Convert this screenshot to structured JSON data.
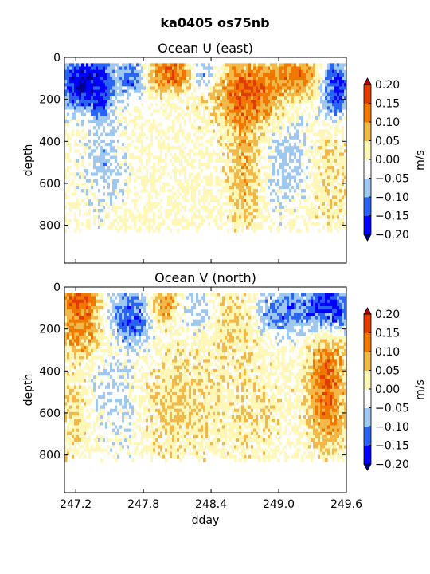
{
  "figure": {
    "suptitle": "ka0405 os75nb"
  },
  "chart_data": [
    {
      "type": "heatmap",
      "title": "Ocean U (east)",
      "xlabel": "",
      "ylabel": "depth",
      "xlim": [
        247.1,
        249.6
      ],
      "ylim": [
        980,
        0
      ],
      "yticks": [
        "0",
        "200",
        "400",
        "600",
        "800"
      ],
      "xticks": [],
      "colorbar": {
        "label": "m/s",
        "ticks": [
          "0.20",
          "0.15",
          "0.10",
          "0.05",
          "0.00",
          "−0.05",
          "−0.10",
          "−0.15",
          "−0.20"
        ],
        "colors": [
          "#00008F",
          "#0000FF",
          "#2A64F5",
          "#9EC8F0",
          "#FFFFFF",
          "#FFF7B8",
          "#F2B84A",
          "#F07800",
          "#E03C00",
          "#B40000"
        ],
        "extend": "both"
      },
      "regions": [
        {
          "x": [
            247.1,
            247.35
          ],
          "depth": [
            30,
            220
          ],
          "value": -0.2
        },
        {
          "x": [
            247.35,
            247.5
          ],
          "depth": [
            30,
            260
          ],
          "value": -0.16
        },
        {
          "x": [
            247.6,
            247.8
          ],
          "depth": [
            30,
            150
          ],
          "value": -0.15
        },
        {
          "x": [
            247.8,
            248.0
          ],
          "depth": [
            30,
            120
          ],
          "value": 0.1
        },
        {
          "x": [
            248.0,
            248.2
          ],
          "depth": [
            30,
            120
          ],
          "value": 0.17
        },
        {
          "x": [
            248.2,
            248.45
          ],
          "depth": [
            30,
            120
          ],
          "value": -0.1
        },
        {
          "x": [
            248.45,
            249.0
          ],
          "depth": [
            30,
            300
          ],
          "value": 0.15
        },
        {
          "x": [
            248.6,
            248.8
          ],
          "depth": [
            300,
            800
          ],
          "value": 0.08
        },
        {
          "x": [
            249.0,
            249.4
          ],
          "depth": [
            30,
            150
          ],
          "value": 0.12
        },
        {
          "x": [
            249.4,
            249.6
          ],
          "depth": [
            30,
            250
          ],
          "value": -0.2
        },
        {
          "x": [
            247.3,
            247.6
          ],
          "depth": [
            300,
            700
          ],
          "value": -0.06
        },
        {
          "x": [
            248.9,
            249.3
          ],
          "depth": [
            300,
            700
          ],
          "value": -0.06
        },
        {
          "x": [
            249.3,
            249.6
          ],
          "depth": [
            300,
            800
          ],
          "value": 0.04
        }
      ]
    },
    {
      "type": "heatmap",
      "title": "Ocean V (north)",
      "xlabel": "dday",
      "ylabel": "depth",
      "xlim": [
        247.1,
        249.6
      ],
      "ylim": [
        980,
        0
      ],
      "yticks": [
        "0",
        "200",
        "400",
        "600",
        "800"
      ],
      "xticks": [
        "247.2",
        "247.8",
        "248.4",
        "249.0",
        "249.6"
      ],
      "colorbar": {
        "label": "m/s",
        "ticks": [
          "0.20",
          "0.15",
          "0.10",
          "0.05",
          "0.00",
          "−0.05",
          "−0.10",
          "−0.15",
          "−0.20"
        ],
        "colors": [
          "#00008F",
          "#0000FF",
          "#2A64F5",
          "#9EC8F0",
          "#FFFFFF",
          "#FFF7B8",
          "#F2B84A",
          "#F07800",
          "#E03C00",
          "#B40000"
        ],
        "extend": "both"
      },
      "regions": [
        {
          "x": [
            247.1,
            247.4
          ],
          "depth": [
            30,
            120
          ],
          "value": 0.17
        },
        {
          "x": [
            247.1,
            247.4
          ],
          "depth": [
            150,
            300
          ],
          "value": 0.1
        },
        {
          "x": [
            247.4,
            247.6
          ],
          "depth": [
            30,
            150
          ],
          "value": -0.06
        },
        {
          "x": [
            247.6,
            247.85
          ],
          "depth": [
            30,
            250
          ],
          "value": -0.16
        },
        {
          "x": [
            247.85,
            248.1
          ],
          "depth": [
            30,
            150
          ],
          "value": 0.12
        },
        {
          "x": [
            248.1,
            248.4
          ],
          "depth": [
            30,
            200
          ],
          "value": -0.08
        },
        {
          "x": [
            248.4,
            248.8
          ],
          "depth": [
            30,
            300
          ],
          "value": 0.06
        },
        {
          "x": [
            248.8,
            249.3
          ],
          "depth": [
            30,
            200
          ],
          "value": -0.12
        },
        {
          "x": [
            249.3,
            249.6
          ],
          "depth": [
            30,
            180
          ],
          "value": -0.2
        },
        {
          "x": [
            249.3,
            249.55
          ],
          "depth": [
            200,
            750
          ],
          "value": 0.14
        },
        {
          "x": [
            247.1,
            247.3
          ],
          "depth": [
            400,
            800
          ],
          "value": 0.05
        },
        {
          "x": [
            247.35,
            247.75
          ],
          "depth": [
            300,
            750
          ],
          "value": -0.05
        },
        {
          "x": [
            247.8,
            248.4
          ],
          "depth": [
            300,
            800
          ],
          "value": 0.05
        },
        {
          "x": [
            248.5,
            249.0
          ],
          "depth": [
            350,
            800
          ],
          "value": 0.03
        }
      ]
    }
  ]
}
